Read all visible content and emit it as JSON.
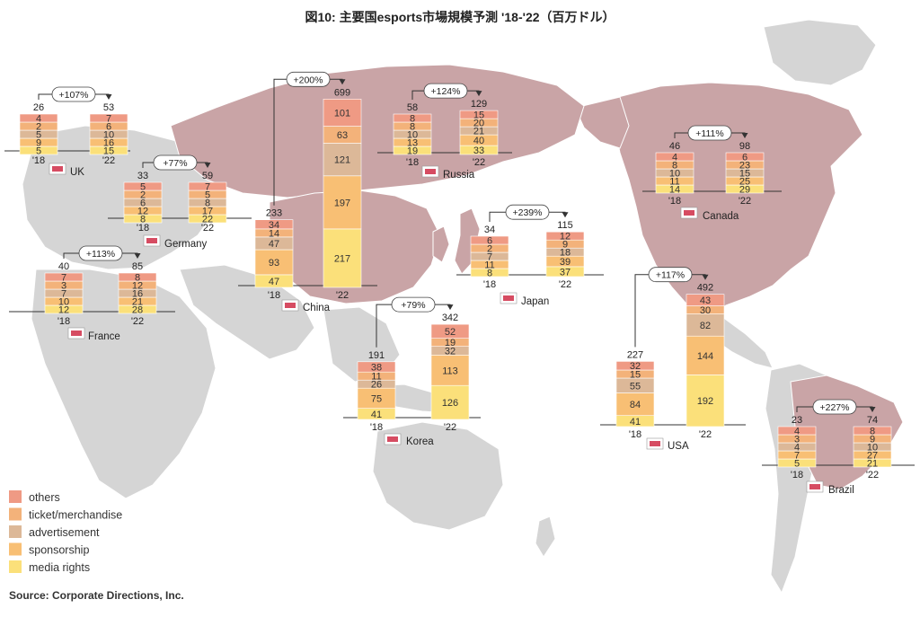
{
  "title": "図10: 主要国esports市場規模予測 '18-'22（百万ドル）",
  "source": "Source: Corporate Directions, Inc.",
  "colors": {
    "others": "#ef9a84",
    "ticket_merchandise": "#f3b27a",
    "advertisement": "#dcb898",
    "sponsorship": "#f8bf74",
    "media_rights": "#fbe07a",
    "land_highlight": "#c9a4a6",
    "land_other": "#d5d5d5"
  },
  "legend": [
    {
      "key": "others",
      "label": "others"
    },
    {
      "key": "ticket_merchandise",
      "label": "ticket/merchandise"
    },
    {
      "key": "advertisement",
      "label": "advertisement"
    },
    {
      "key": "sponsorship",
      "label": "sponsorship"
    },
    {
      "key": "media_rights",
      "label": "media rights"
    }
  ],
  "chart_data": {
    "type": "bar",
    "unit": "百万ドル",
    "stack_order": [
      "media_rights",
      "sponsorship",
      "advertisement",
      "ticket_merchandise",
      "others"
    ],
    "year_labels": [
      "'18",
      "'22"
    ],
    "countries": [
      {
        "id": "uk",
        "name": "UK",
        "growth": "+107%",
        "y2018": {
          "total": 26,
          "values": [
            5,
            9,
            5,
            2,
            4
          ]
        },
        "y2022": {
          "total": 53,
          "values": [
            15,
            16,
            10,
            6,
            7
          ]
        }
      },
      {
        "id": "germany",
        "name": "Germany",
        "growth": "+77%",
        "y2018": {
          "total": 33,
          "values": [
            8,
            12,
            6,
            2,
            5
          ]
        },
        "y2022": {
          "total": 59,
          "values": [
            22,
            17,
            8,
            5,
            7
          ]
        }
      },
      {
        "id": "france",
        "name": "France",
        "growth": "+113%",
        "y2018": {
          "total": 40,
          "values": [
            12,
            10,
            7,
            3,
            7
          ]
        },
        "y2022": {
          "total": 85,
          "values": [
            28,
            21,
            16,
            12,
            8
          ]
        }
      },
      {
        "id": "china",
        "name": "China",
        "growth": "+200%",
        "y2018": {
          "total": 233,
          "values": [
            47,
            93,
            47,
            14,
            34
          ]
        },
        "y2022": {
          "total": 699,
          "values": [
            217,
            197,
            121,
            63,
            101
          ]
        }
      },
      {
        "id": "russia",
        "name": "Russia",
        "growth": "+124%",
        "y2018": {
          "total": 58,
          "values": [
            19,
            13,
            10,
            8,
            8
          ]
        },
        "y2022": {
          "total": 129,
          "values": [
            33,
            40,
            21,
            20,
            15
          ]
        }
      },
      {
        "id": "japan",
        "name": "Japan",
        "growth": "+239%",
        "y2018": {
          "total": 34,
          "values": [
            8,
            11,
            7,
            2,
            6
          ]
        },
        "y2022": {
          "total": 115,
          "values": [
            37,
            39,
            18,
            9,
            12
          ]
        }
      },
      {
        "id": "korea",
        "name": "Korea",
        "growth": "+79%",
        "y2018": {
          "total": 191,
          "values": [
            41,
            75,
            26,
            11,
            38
          ]
        },
        "y2022": {
          "total": 342,
          "values": [
            126,
            113,
            32,
            19,
            52
          ]
        }
      },
      {
        "id": "canada",
        "name": "Canada",
        "growth": "+111%",
        "y2018": {
          "total": 46,
          "values": [
            14,
            11,
            10,
            8,
            4
          ]
        },
        "y2022": {
          "total": 98,
          "values": [
            29,
            25,
            15,
            23,
            6
          ]
        }
      },
      {
        "id": "usa",
        "name": "USA",
        "growth": "+117%",
        "y2018": {
          "total": 227,
          "values": [
            41,
            84,
            55,
            15,
            32
          ]
        },
        "y2022": {
          "total": 492,
          "values": [
            192,
            144,
            82,
            30,
            43
          ]
        }
      },
      {
        "id": "brazil",
        "name": "Brazil",
        "growth": "+227%",
        "y2018": {
          "total": 23,
          "values": [
            5,
            7,
            4,
            3,
            4
          ]
        },
        "y2022": {
          "total": 74,
          "values": [
            21,
            27,
            10,
            9,
            8
          ]
        }
      }
    ]
  }
}
